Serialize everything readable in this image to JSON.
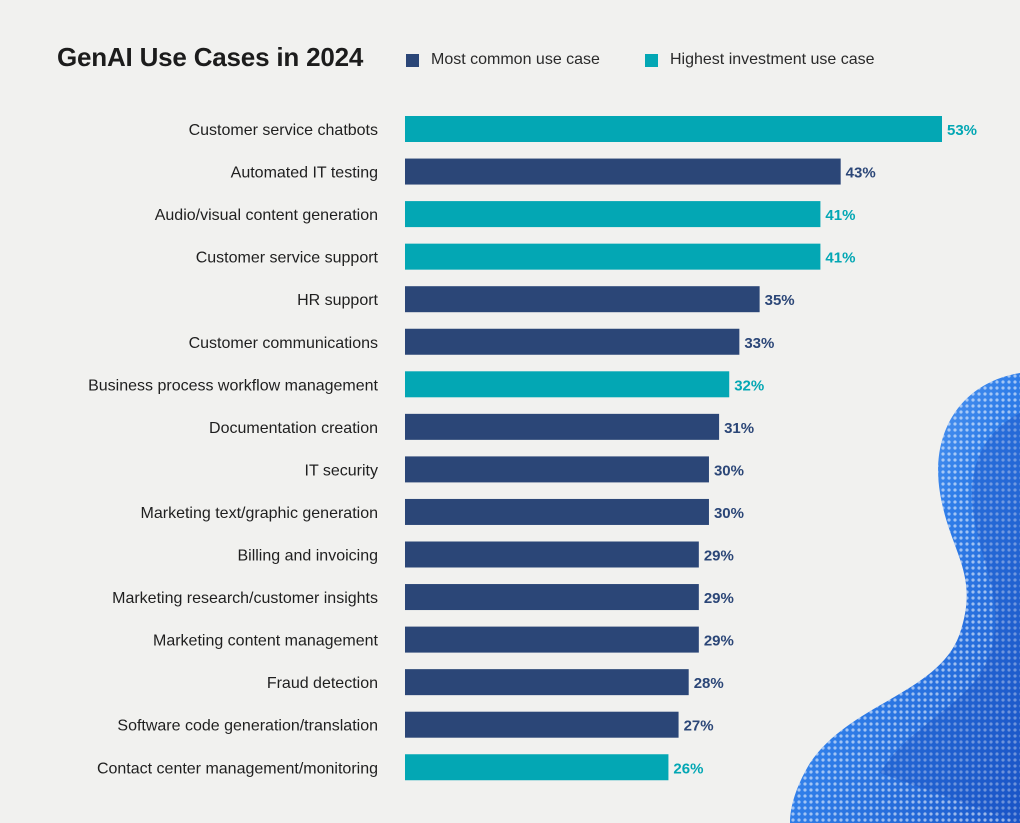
{
  "chart_data": {
    "type": "bar",
    "orientation": "horizontal",
    "title": "GenAI Use Cases in 2024",
    "legend": [
      {
        "name": "Most common use case",
        "color": "#2b4677"
      },
      {
        "name": "Highest investment use case",
        "color": "#03a7b4"
      }
    ],
    "categories": [
      "Customer service chatbots",
      "Automated IT testing",
      "Audio/visual content generation",
      "Customer service support",
      "HR support",
      "Customer communications",
      "Business process workflow management",
      "Documentation creation",
      "IT security",
      "Marketing text/graphic generation",
      "Billing and invoicing",
      "Marketing research/customer insights",
      "Marketing content management",
      "Fraud detection",
      "Software code generation/translation",
      "Contact center management/monitoring"
    ],
    "values": [
      53,
      43,
      41,
      41,
      35,
      33,
      32,
      31,
      30,
      30,
      29,
      29,
      29,
      28,
      27,
      26
    ],
    "value_labels": [
      "53%",
      "43%",
      "41%",
      "41%",
      "35%",
      "33%",
      "32%",
      "31%",
      "30%",
      "30%",
      "29%",
      "29%",
      "29%",
      "28%",
      "27%",
      "26%"
    ],
    "series_membership": [
      "Highest investment use case",
      "Most common use case",
      "Highest investment use case",
      "Highest investment use case",
      "Most common use case",
      "Most common use case",
      "Highest investment use case",
      "Most common use case",
      "Most common use case",
      "Most common use case",
      "Most common use case",
      "Most common use case",
      "Most common use case",
      "Most common use case",
      "Most common use case",
      "Highest investment use case"
    ],
    "xlim": [
      0,
      53
    ],
    "unit": "%",
    "grid": false
  }
}
